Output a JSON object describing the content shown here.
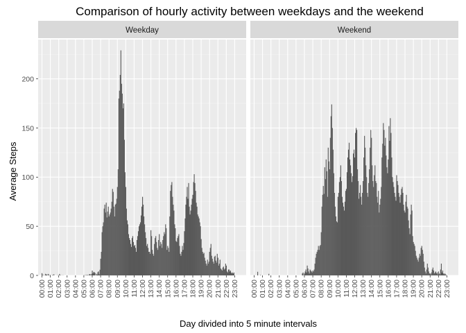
{
  "chart_data": {
    "type": "bar",
    "title": "Comparison of hourly activity between weekdays and the weekend",
    "xlabel": "Day divided into 5 minute intervals",
    "ylabel": "Average Steps",
    "ylim": [
      0,
      240
    ],
    "y_ticks": [
      0,
      50,
      100,
      150,
      200
    ],
    "x_ticks": [
      "00:00",
      "01:00",
      "02:00",
      "03:00",
      "04:00",
      "05:00",
      "06:00",
      "07:00",
      "08:00",
      "09:00",
      "10:00",
      "11:00",
      "12:00",
      "13:00",
      "14:00",
      "15:00",
      "16:00",
      "17:00",
      "18:00",
      "19:00",
      "20:00",
      "21:00",
      "22:00",
      "23:00"
    ],
    "grid": true,
    "legend": "none",
    "bar_color": "#595959",
    "panel_background": "#ebebeb",
    "strip_background": "#d9d9d9",
    "x_interval_minutes": 5,
    "series": [
      {
        "name": "Weekday",
        "values": [
          2.3,
          0.5,
          0.2,
          0.2,
          0.1,
          1.6,
          0.7,
          1.1,
          0,
          1.5,
          0.3,
          0.2,
          0.4,
          0,
          0,
          0.5,
          0.1,
          1.2,
          0,
          0,
          0,
          0,
          0.2,
          0,
          0.1,
          1.5,
          0.2,
          0.3,
          0,
          0,
          0.2,
          0,
          0,
          0,
          0,
          0,
          0,
          0,
          0,
          0,
          0,
          0,
          0,
          0,
          0,
          0,
          0,
          0,
          0,
          0,
          0,
          0,
          0,
          0,
          0,
          0,
          0,
          0,
          0,
          0,
          0.2,
          0.2,
          0,
          0.5,
          0.1,
          0.5,
          0.3,
          0.1,
          1.4,
          1.2,
          0.1,
          1.5,
          4.9,
          2.2,
          3.6,
          3.2,
          2.5,
          0,
          1.6,
          0.8,
          3.3,
          4.1,
          1.1,
          5.8,
          17,
          24,
          44,
          50,
          54,
          68,
          72,
          64,
          74,
          59,
          65,
          70,
          60,
          62,
          64,
          68,
          75,
          88,
          85,
          70,
          60,
          72,
          73,
          78,
          90,
          108,
          180,
          188,
          204,
          229,
          195,
          185,
          170,
          175,
          138,
          105,
          90,
          68,
          56,
          52,
          42,
          38,
          36,
          32,
          29,
          38,
          40,
          34,
          30,
          31,
          28,
          24,
          36,
          40,
          45,
          50,
          52,
          54,
          61,
          70,
          80,
          72,
          60,
          52,
          44,
          38,
          30,
          32,
          28,
          24,
          24,
          22,
          46,
          40,
          26,
          22,
          20,
          32,
          38,
          40,
          34,
          28,
          26,
          36,
          42,
          30,
          34,
          32,
          28,
          36,
          40,
          44,
          42,
          52,
          48,
          26,
          30,
          28,
          24,
          60,
          86,
          92,
          95,
          80,
          72,
          66,
          52,
          48,
          35,
          34,
          38,
          40,
          42,
          30,
          22,
          20,
          24,
          30,
          26,
          33,
          45,
          58,
          72,
          80,
          90,
          78,
          94,
          70,
          62,
          66,
          72,
          78,
          82,
          95,
          103,
          94,
          86,
          74,
          70,
          62,
          60,
          58,
          54,
          50,
          37,
          28,
          24,
          22,
          23,
          18,
          15,
          12,
          10,
          16,
          12,
          14,
          24,
          28,
          32,
          20,
          17,
          14,
          12,
          19,
          20,
          15,
          13,
          22,
          18,
          10,
          12,
          16,
          7,
          6,
          5,
          8,
          9,
          6,
          7,
          12,
          10,
          4,
          3,
          6,
          6,
          4,
          5,
          3,
          2,
          3,
          2,
          3
        ]
      },
      {
        "name": "Weekend",
        "values": [
          0.2,
          0,
          0,
          0,
          0,
          3.7,
          0,
          0,
          0,
          0.4,
          0,
          0,
          0,
          0,
          0,
          0,
          0,
          0,
          0,
          0,
          0,
          1.6,
          0,
          0,
          0,
          0,
          0,
          0,
          0,
          0,
          0,
          0,
          0,
          0,
          0,
          0,
          0,
          0,
          0,
          0,
          0,
          0,
          0,
          0,
          0,
          0,
          0,
          0,
          0,
          0,
          0,
          0,
          0,
          0,
          0,
          0,
          0,
          0,
          0,
          0,
          0,
          0,
          0,
          0,
          0,
          0,
          0,
          0,
          0,
          2,
          3,
          0,
          2,
          4,
          6,
          3,
          10,
          7,
          4,
          2,
          6,
          5,
          4,
          3,
          5,
          4,
          6,
          12,
          18,
          22,
          24,
          26,
          30,
          26,
          30,
          31,
          44,
          70,
          82,
          91,
          83,
          110,
          98,
          118,
          106,
          80,
          130,
          116,
          108,
          140,
          162,
          174,
          150,
          128,
          104,
          84,
          70,
          60,
          55,
          54,
          80,
          84,
          95,
          100,
          112,
          96,
          80,
          74,
          70,
          66,
          75,
          86,
          88,
          105,
          120,
          128,
          135,
          118,
          112,
          104,
          95,
          101,
          124,
          128,
          120,
          145,
          150,
          148,
          108,
          96,
          78,
          84,
          92,
          80,
          72,
          84,
          96,
          120,
          142,
          130,
          112,
          100,
          84,
          80,
          94,
          108,
          130,
          148,
          140,
          112,
          96,
          90,
          102,
          112,
          96,
          94,
          80,
          74,
          86,
          64,
          72,
          78,
          90,
          120,
          134,
          155,
          148,
          132,
          140,
          122,
          110,
          104,
          118,
          152,
          137,
          160,
          145,
          120,
          100,
          95,
          90,
          84,
          80,
          76,
          102,
          96,
          92,
          84,
          80,
          74,
          82,
          88,
          90,
          84,
          72,
          66,
          64,
          75,
          82,
          70,
          68,
          56,
          48,
          42,
          62,
          72,
          66,
          40,
          34,
          32,
          30,
          25,
          20,
          18,
          16,
          14,
          18,
          22,
          20,
          28,
          30,
          26,
          22,
          14,
          8,
          4,
          2,
          6,
          12,
          8,
          4,
          2,
          2,
          1,
          3,
          6,
          8,
          5,
          2,
          3,
          4,
          2,
          3,
          1,
          4,
          2,
          1,
          6,
          12,
          3,
          5,
          2,
          1,
          2,
          1,
          0.5
        ]
      }
    ]
  }
}
